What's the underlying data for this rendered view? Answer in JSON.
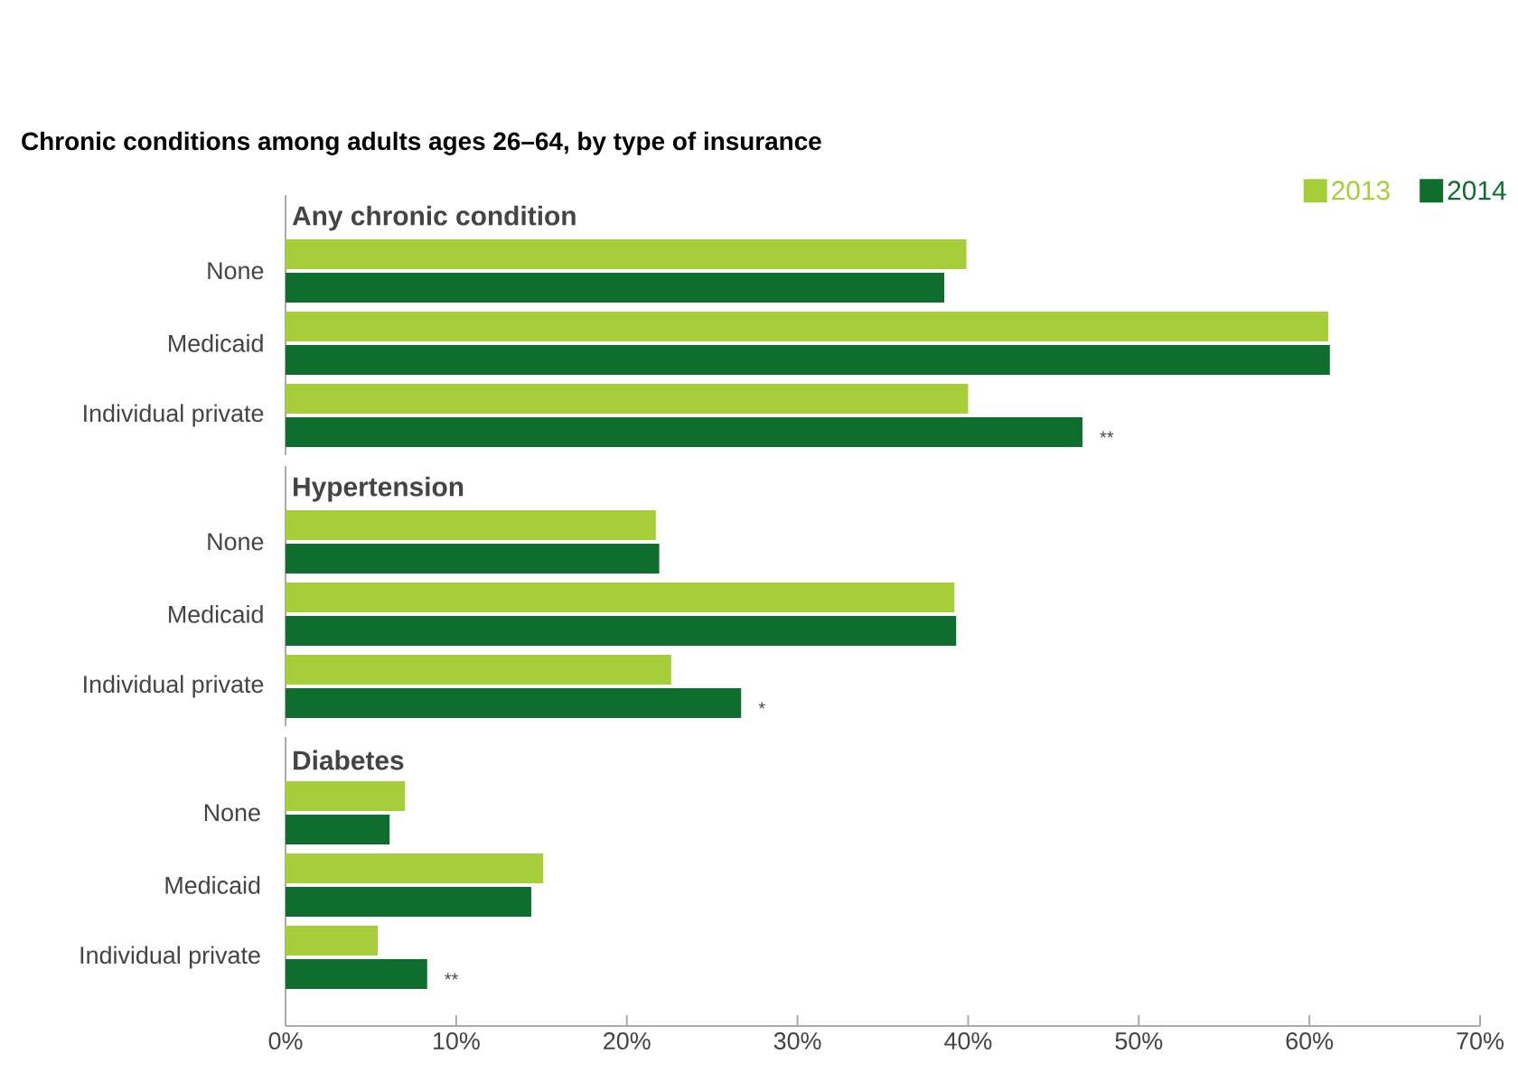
{
  "chart_data": [
    {
      "type": "bar",
      "orientation": "horizontal",
      "title": "Chronic conditions among adults ages 26–64, by type of insurance",
      "subtitle": "Any chronic condition",
      "categories": [
        "None",
        "Medicaid",
        "Individual private"
      ],
      "series": [
        {
          "name": "2013",
          "color": "#a6ce39",
          "values": [
            39.9,
            61.1,
            40.0
          ]
        },
        {
          "name": "2014",
          "color": "#0f6e2e",
          "values": [
            38.6,
            61.2,
            46.7
          ]
        }
      ],
      "xlim": [
        0,
        70
      ],
      "tick_labels": "y",
      "legend": "top right",
      "annotations": [
        {
          "text": "**",
          "x": 46.7,
          "y": "Individual private"
        }
      ]
    },
    {
      "type": "bar",
      "orientation": "horizontal",
      "subtitle": "Hypertension",
      "categories": [
        "None",
        "Medicaid",
        "Individual private"
      ],
      "series": [
        {
          "color": "#a6ce39",
          "values": [
            21.7,
            39.2,
            22.6
          ]
        },
        {
          "color": "#0f6e2e",
          "values": [
            21.9,
            39.3,
            26.7
          ]
        }
      ],
      "xlim": [
        0,
        70
      ],
      "tick_labels": "y",
      "annotations": [
        {
          "text": "*",
          "x": 26.7,
          "y": "Individual private"
        }
      ]
    },
    {
      "type": "bar",
      "orientation": "horizontal",
      "subtitle": "Diabetes",
      "categories": [
        "None",
        "Medicaid",
        "Individual private"
      ],
      "series": [
        {
          "color": "#a6ce39",
          "values": [
            7.0,
            15.1,
            5.4
          ]
        },
        {
          "color": "#0f6e2e",
          "values": [
            6.1,
            14.4,
            8.3
          ]
        }
      ],
      "xlim": [
        0,
        70
      ],
      "xticks": [
        {
          "value": 0,
          "label": "0%"
        },
        {
          "value": 10,
          "label": "10%"
        },
        {
          "value": 20,
          "label": "20%"
        },
        {
          "value": 30,
          "label": "30%"
        },
        {
          "value": 40,
          "label": "40%"
        },
        {
          "value": 50,
          "label": "50%"
        },
        {
          "value": 60,
          "label": "60%"
        },
        {
          "value": 70,
          "label": "70%"
        }
      ],
      "annotations": [
        {
          "text": "**",
          "x": 8.3,
          "y": "Individual private"
        }
      ]
    }
  ]
}
